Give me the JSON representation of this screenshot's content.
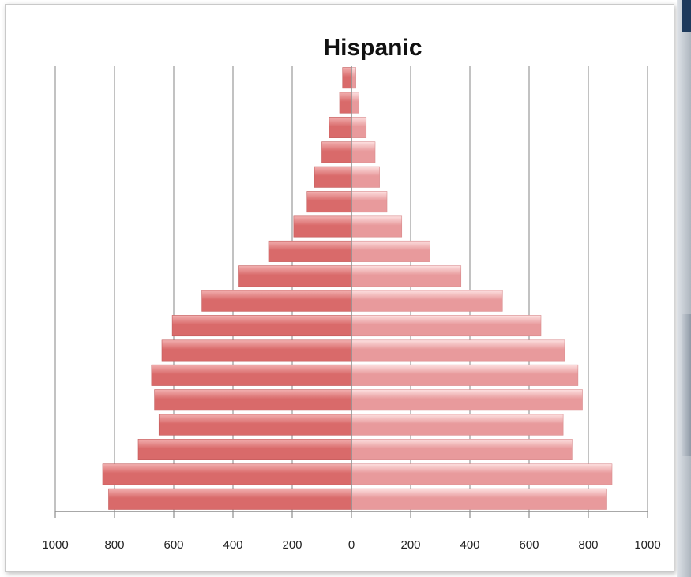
{
  "chart_data": {
    "type": "bar",
    "orientation": "horizontal-population-pyramid",
    "title": "Hispanic",
    "xlim": [
      -1000,
      1000
    ],
    "x_ticks": [
      -1000,
      -800,
      -600,
      -400,
      -200,
      0,
      200,
      400,
      600,
      800,
      1000
    ],
    "x_tick_labels": [
      "1000",
      "800",
      "600",
      "400",
      "200",
      "0",
      "200",
      "400",
      "600",
      "800",
      "1000"
    ],
    "grid": "vertical",
    "colors": {
      "left_bar_dark": "#d96a6a",
      "left_bar_light": "#f2b0b0",
      "right_bar_dark": "#e89a9c",
      "right_bar_light": "#fde0e0",
      "gridline": "#9a9a9a",
      "axis": "#8c8c8c"
    },
    "series": [
      {
        "side": "left",
        "values_bottom_to_top": [
          820,
          840,
          720,
          650,
          665,
          675,
          640,
          605,
          505,
          380,
          280,
          195,
          150,
          125,
          100,
          75,
          40,
          30
        ]
      },
      {
        "side": "right",
        "values_bottom_to_top": [
          860,
          880,
          745,
          715,
          780,
          765,
          720,
          640,
          510,
          370,
          265,
          170,
          120,
          95,
          80,
          50,
          25,
          15
        ]
      }
    ]
  }
}
